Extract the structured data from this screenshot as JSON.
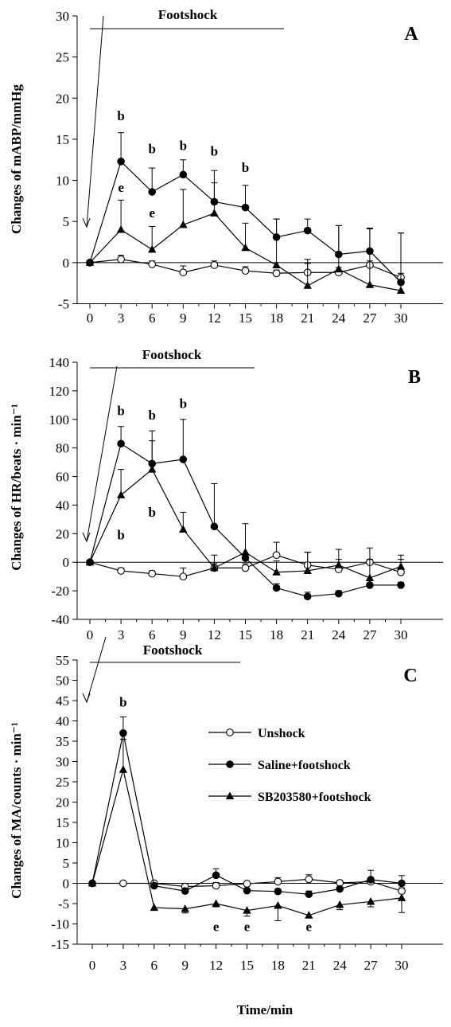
{
  "xlabel": "Time/min",
  "legend": [
    {
      "label": "Unshock",
      "marker": "open-circle"
    },
    {
      "label": "Saline+footshock",
      "marker": "filled-circle"
    },
    {
      "label": "SB203580+footshock",
      "marker": "filled-triangle"
    }
  ],
  "chart_data": [
    {
      "type": "line",
      "panel": "A",
      "ylabel": "Changes of mABP/mmHg",
      "shock_label": "Footshock",
      "ylim": [
        -5,
        30
      ],
      "yticks": [
        -5,
        0,
        5,
        10,
        15,
        20,
        25,
        30
      ],
      "x": [
        0,
        3,
        6,
        9,
        12,
        15,
        18,
        21,
        24,
        27,
        30
      ],
      "series": [
        {
          "name": "Unshock",
          "marker": "open-circle",
          "values": [
            0,
            0.4,
            -0.2,
            -1.2,
            -0.3,
            -1.0,
            -1.3,
            -1.2,
            -1.2,
            -0.3,
            -1.8
          ],
          "err": [
            0,
            0.5,
            0.4,
            0.8,
            0.5,
            0.5,
            0.4,
            1.1,
            0.6,
            0.5,
            0.5
          ]
        },
        {
          "name": "Saline+footshock",
          "marker": "filled-circle",
          "values": [
            0,
            12.3,
            8.6,
            10.7,
            7.4,
            6.7,
            3.1,
            3.9,
            1.0,
            1.4,
            -2.4
          ],
          "err": [
            0,
            3.5,
            2.9,
            1.8,
            2.3,
            2.7,
            2.2,
            1.4,
            3.5,
            2.8,
            6.0
          ]
        },
        {
          "name": "SB203580+footshock",
          "marker": "filled-triangle",
          "values": [
            0,
            4.0,
            1.6,
            4.6,
            6.0,
            1.8,
            -0.3,
            -2.8,
            -0.8,
            -2.7,
            -3.4
          ],
          "err": [
            0,
            3.6,
            2.8,
            4.3,
            5.2,
            3.0,
            5.6,
            3.2,
            5.3,
            6.8,
            7.0
          ]
        }
      ],
      "annotations": [
        {
          "text": "b",
          "x": 3,
          "y": 17.3
        },
        {
          "text": "b",
          "x": 6,
          "y": 13.3
        },
        {
          "text": "b",
          "x": 9,
          "y": 13.7
        },
        {
          "text": "b",
          "x": 12,
          "y": 13.0
        },
        {
          "text": "b",
          "x": 15,
          "y": 11.0
        },
        {
          "text": "e",
          "x": 3,
          "y": 8.6
        },
        {
          "text": "e",
          "x": 6,
          "y": 5.5
        }
      ]
    },
    {
      "type": "line",
      "panel": "B",
      "ylabel": "Changes of HR/beats · min⁻¹",
      "shock_label": "Footshock",
      "ylim": [
        -40,
        140
      ],
      "yticks": [
        -40,
        -20,
        0,
        20,
        40,
        60,
        80,
        100,
        120,
        140
      ],
      "x": [
        0,
        3,
        6,
        9,
        12,
        15,
        18,
        21,
        24,
        27,
        30
      ],
      "series": [
        {
          "name": "Unshock",
          "marker": "open-circle",
          "values": [
            0,
            -6,
            -8,
            -10,
            -4,
            -4,
            5,
            -2,
            -5,
            0,
            -7
          ],
          "err": [
            0,
            2,
            2,
            6,
            3,
            3,
            9,
            9,
            7,
            10,
            9
          ]
        },
        {
          "name": "Saline+footshock",
          "marker": "filled-circle",
          "values": [
            0,
            83,
            69,
            72,
            25,
            3,
            -18,
            -24,
            -22,
            -16,
            -16
          ],
          "err": [
            0,
            12,
            23,
            28,
            30,
            3,
            3,
            3,
            2,
            3,
            2
          ]
        },
        {
          "name": "SB203580+footshock",
          "marker": "filled-triangle",
          "values": [
            0,
            47,
            65,
            23,
            -4,
            7,
            -7,
            -6,
            -2,
            -11,
            -3
          ],
          "err": [
            0,
            18,
            20,
            12,
            9,
            20,
            8,
            13,
            11,
            13,
            8
          ]
        }
      ],
      "annotations": [
        {
          "text": "b",
          "x": 3,
          "y": 103
        },
        {
          "text": "b",
          "x": 6,
          "y": 100
        },
        {
          "text": "b",
          "x": 9,
          "y": 108
        },
        {
          "text": "b",
          "x": 3,
          "y": 16
        },
        {
          "text": "b",
          "x": 6,
          "y": 32
        }
      ]
    },
    {
      "type": "line",
      "panel": "C",
      "ylabel": "Changes of MA/counts · min⁻¹",
      "shock_label": "Footshock",
      "ylim": [
        -15,
        55
      ],
      "yticks": [
        -15,
        -10,
        -5,
        0,
        5,
        10,
        15,
        20,
        25,
        30,
        35,
        40,
        45,
        50,
        55
      ],
      "x": [
        0,
        3,
        6,
        9,
        12,
        15,
        18,
        21,
        24,
        27,
        30
      ],
      "series": [
        {
          "name": "Unshock",
          "marker": "open-circle",
          "values": [
            0,
            0,
            0,
            -0.8,
            -0.6,
            -0.1,
            0.4,
            1.0,
            0.1,
            0.4,
            -1.9
          ],
          "err": [
            0,
            0,
            0.3,
            0.5,
            0.8,
            0.4,
            1.0,
            1.1,
            0.5,
            0.9,
            0.8
          ]
        },
        {
          "name": "Saline+footshock",
          "marker": "filled-circle",
          "values": [
            0,
            37,
            -0.6,
            -1.9,
            2.0,
            -1.8,
            -2.0,
            -2.7,
            -1.4,
            0.9,
            0.0
          ],
          "err": [
            0,
            4.0,
            0.5,
            0.7,
            1.6,
            0.4,
            0.6,
            0.8,
            0.5,
            2.3,
            1.9
          ]
        },
        {
          "name": "SB203580+footshock",
          "marker": "filled-triangle",
          "values": [
            0,
            28,
            -6.0,
            -6.3,
            -5.0,
            -6.7,
            -5.5,
            -7.9,
            -5.3,
            -4.5,
            -3.6
          ],
          "err": [
            0,
            7.5,
            0.5,
            1.0,
            0.8,
            1.4,
            3.7,
            0.6,
            1.2,
            1.3,
            3.6
          ]
        }
      ],
      "annotations": [
        {
          "text": "b",
          "x": 3,
          "y": 43.5
        },
        {
          "text": "e",
          "x": 12,
          "y": -11.8
        },
        {
          "text": "e",
          "x": 15,
          "y": -11.8
        },
        {
          "text": "e",
          "x": 21,
          "y": -11.8
        }
      ]
    }
  ]
}
